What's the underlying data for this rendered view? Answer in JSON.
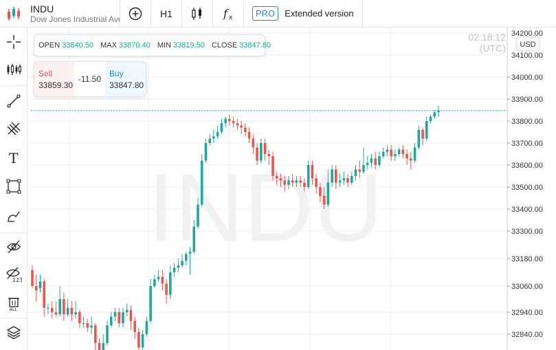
{
  "toolbar": {
    "symbol": "INDU",
    "description": "Dow Jones Industrial Ave",
    "timeframe": "H1",
    "pro_badge": "PRO",
    "extended_label": "Extended version"
  },
  "ohlc": {
    "open_label": "OPEN",
    "open": "33840.50",
    "max_label": "MAX",
    "max": "33870.40",
    "min_label": "MIN",
    "min": "33819.50",
    "close_label": "CLOSE",
    "close": "33847.80"
  },
  "trade": {
    "sell_label": "Sell",
    "sell_price": "33859.30",
    "spread": "-11.50",
    "buy_label": "Buy",
    "buy_price": "33847.80"
  },
  "time": "02:18:12 (UTC)",
  "currency": "USD",
  "watermark": "INDU",
  "colors": {
    "up": "#26a69a",
    "down": "#ef5350",
    "accent": "#2a86c9",
    "current_line": "#26a69a"
  },
  "left_tools": [
    "crosshair-icon",
    "candles-icon",
    "trend-line-icon",
    "fib-icon",
    "text-icon",
    "rectangle-icon",
    "brush-icon",
    "hide-drawings-icon",
    "hide-indicators-icon",
    "delete-all-icon",
    "layers-icon"
  ],
  "chart_data": {
    "type": "candlestick",
    "current_price": 33847.8,
    "y_ticks": [
      "34200.00",
      "34100.00",
      "34000.00",
      "33900.00",
      "33800.00",
      "33700.00",
      "33600.00",
      "33500.00",
      "33400.00",
      "33300.00",
      "33180.00",
      "33060.00",
      "32940.00",
      "32840.00"
    ],
    "candles": [
      [
        33130,
        33060,
        33150,
        33050
      ],
      [
        33060,
        33040,
        33110,
        32990
      ],
      [
        33050,
        33080,
        33110,
        33030
      ],
      [
        33080,
        32960,
        33090,
        32920
      ],
      [
        32960,
        32960,
        32980,
        32930
      ],
      [
        32960,
        32940,
        32990,
        32910
      ],
      [
        32940,
        32930,
        32990,
        32920
      ],
      [
        32930,
        33000,
        33060,
        32920
      ],
      [
        33000,
        32930,
        33030,
        32900
      ],
      [
        32930,
        32960,
        33000,
        32920
      ],
      [
        32960,
        32930,
        32990,
        32900
      ],
      [
        32930,
        32940,
        32990,
        32910
      ],
      [
        32940,
        32890,
        32950,
        32870
      ],
      [
        32890,
        32890,
        32920,
        32870
      ],
      [
        32890,
        32870,
        32910,
        32850
      ],
      [
        32870,
        32880,
        32920,
        32840
      ],
      [
        32880,
        32800,
        32890,
        32760
      ],
      [
        32800,
        32750,
        32820,
        32720
      ],
      [
        32750,
        32800,
        32840,
        32720
      ],
      [
        32800,
        32880,
        32900,
        32790
      ],
      [
        32880,
        32920,
        32940,
        32870
      ],
      [
        32920,
        32940,
        32960,
        32900
      ],
      [
        32940,
        32890,
        32960,
        32870
      ],
      [
        32890,
        32940,
        32960,
        32870
      ],
      [
        32940,
        32950,
        32980,
        32920
      ],
      [
        32950,
        32900,
        32970,
        32860
      ],
      [
        32900,
        32850,
        32920,
        32820
      ],
      [
        32850,
        32780,
        32870,
        32740
      ],
      [
        32780,
        32840,
        32860,
        32760
      ],
      [
        32840,
        32900,
        32920,
        32830
      ],
      [
        32900,
        33060,
        33090,
        32890
      ],
      [
        33060,
        33090,
        33110,
        33050
      ],
      [
        33090,
        33100,
        33130,
        33080
      ],
      [
        33100,
        33070,
        33130,
        33040
      ],
      [
        33070,
        33020,
        33090,
        32980
      ],
      [
        33020,
        33120,
        33150,
        33000
      ],
      [
        33120,
        33140,
        33160,
        33100
      ],
      [
        33140,
        33150,
        33180,
        33120
      ],
      [
        33150,
        33170,
        33200,
        33140
      ],
      [
        33170,
        33200,
        33210,
        33150
      ],
      [
        33200,
        33210,
        33230,
        33110
      ],
      [
        33210,
        33320,
        33350,
        33200
      ],
      [
        33320,
        33420,
        33450,
        33310
      ],
      [
        33420,
        33620,
        33650,
        33410
      ],
      [
        33620,
        33700,
        33720,
        33610
      ],
      [
        33700,
        33720,
        33740,
        33690
      ],
      [
        33720,
        33730,
        33760,
        33700
      ],
      [
        33730,
        33750,
        33780,
        33720
      ],
      [
        33750,
        33790,
        33810,
        33740
      ],
      [
        33790,
        33810,
        33820,
        33770
      ],
      [
        33810,
        33800,
        33830,
        33780
      ],
      [
        33800,
        33790,
        33820,
        33770
      ],
      [
        33790,
        33780,
        33810,
        33760
      ],
      [
        33780,
        33770,
        33800,
        33740
      ],
      [
        33770,
        33750,
        33790,
        33730
      ],
      [
        33750,
        33720,
        33770,
        33700
      ],
      [
        33720,
        33680,
        33740,
        33650
      ],
      [
        33680,
        33620,
        33700,
        33600
      ],
      [
        33620,
        33700,
        33720,
        33610
      ],
      [
        33700,
        33650,
        33720,
        33620
      ],
      [
        33650,
        33640,
        33670,
        33600
      ],
      [
        33640,
        33550,
        33660,
        33530
      ],
      [
        33550,
        33540,
        33570,
        33510
      ],
      [
        33540,
        33530,
        33560,
        33500
      ],
      [
        33530,
        33510,
        33550,
        33480
      ],
      [
        33510,
        33530,
        33550,
        33490
      ],
      [
        33530,
        33520,
        33560,
        33500
      ],
      [
        33520,
        33530,
        33550,
        33500
      ],
      [
        33530,
        33520,
        33550,
        33500
      ],
      [
        33520,
        33500,
        33540,
        33480
      ],
      [
        33500,
        33600,
        33620,
        33490
      ],
      [
        33600,
        33540,
        33620,
        33510
      ],
      [
        33540,
        33500,
        33560,
        33470
      ],
      [
        33500,
        33460,
        33520,
        33430
      ],
      [
        33460,
        33420,
        33500,
        33400
      ],
      [
        33420,
        33520,
        33580,
        33410
      ],
      [
        33520,
        33580,
        33600,
        33500
      ],
      [
        33580,
        33520,
        33600,
        33490
      ],
      [
        33520,
        33530,
        33560,
        33500
      ],
      [
        33530,
        33540,
        33570,
        33510
      ],
      [
        33540,
        33520,
        33560,
        33500
      ],
      [
        33520,
        33550,
        33570,
        33510
      ],
      [
        33550,
        33580,
        33600,
        33530
      ],
      [
        33580,
        33570,
        33620,
        33540
      ],
      [
        33570,
        33600,
        33680,
        33560
      ],
      [
        33600,
        33610,
        33640,
        33580
      ],
      [
        33610,
        33630,
        33650,
        33590
      ],
      [
        33630,
        33600,
        33660,
        33580
      ],
      [
        33600,
        33640,
        33660,
        33590
      ],
      [
        33640,
        33660,
        33680,
        33630
      ],
      [
        33660,
        33670,
        33690,
        33640
      ],
      [
        33670,
        33640,
        33690,
        33620
      ],
      [
        33640,
        33650,
        33670,
        33620
      ],
      [
        33650,
        33670,
        33680,
        33640
      ],
      [
        33670,
        33650,
        33690,
        33630
      ],
      [
        33650,
        33630,
        33670,
        33600
      ],
      [
        33630,
        33620,
        33660,
        33580
      ],
      [
        33620,
        33680,
        33700,
        33610
      ],
      [
        33680,
        33760,
        33780,
        33670
      ],
      [
        33760,
        33720,
        33770,
        33690
      ],
      [
        33720,
        33800,
        33820,
        33710
      ],
      [
        33800,
        33820,
        33830,
        33790
      ],
      [
        33820,
        33840,
        33850,
        33810
      ],
      [
        33840,
        33848,
        33870,
        33820
      ]
    ]
  }
}
